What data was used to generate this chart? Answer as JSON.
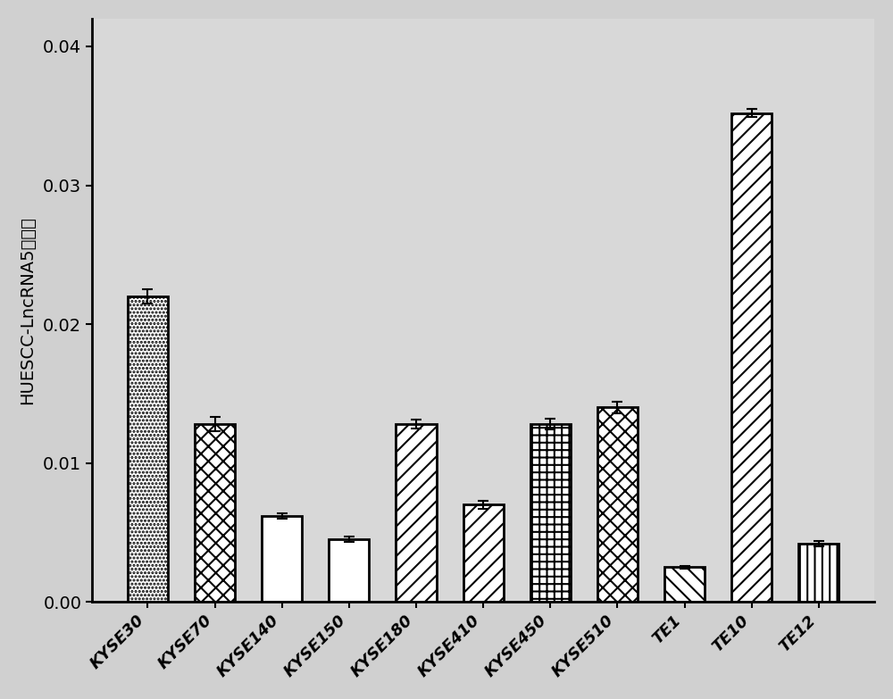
{
  "categories": [
    "KYSE30",
    "KYSE70",
    "KYSE140",
    "KYSE150",
    "KYSE180",
    "KYSE410",
    "KYSE450",
    "KYSE510",
    "TE1",
    "TE10",
    "TE12"
  ],
  "values": [
    0.022,
    0.0128,
    0.0062,
    0.0045,
    0.0128,
    0.007,
    0.0128,
    0.014,
    0.0025,
    0.0352,
    0.0042
  ],
  "errors": [
    0.0005,
    0.0005,
    0.0002,
    0.0002,
    0.0003,
    0.0003,
    0.0004,
    0.0004,
    0.0001,
    0.0003,
    0.0002
  ],
  "hatches": [
    ".",
    "x",
    "=",
    "",
    "/",
    "/",
    "+",
    "x",
    "\\",
    "/",
    "|"
  ],
  "ylabel": "HUESCC-LncRNA5表达量",
  "ylim": [
    0,
    0.042
  ],
  "yticks": [
    0.0,
    0.01,
    0.02,
    0.03,
    0.04
  ],
  "background_color": "#d0d0d0",
  "plot_bg_color": "#d8d8d8",
  "bar_edge_color": "#000000",
  "bar_fill_color": "#ffffff",
  "bar_linewidth": 2.0,
  "figsize": [
    10.0,
    7.83
  ],
  "dpi": 100,
  "tick_labelsize": 14,
  "ylabel_fontsize": 14,
  "xlabel_fontsize": 13,
  "bar_width": 0.6
}
